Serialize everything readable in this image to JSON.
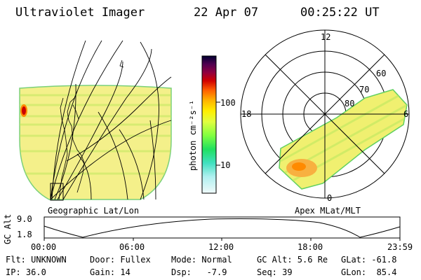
{
  "header": {
    "title": "Ultraviolet Imager",
    "date": "22 Apr 07",
    "time": "00:25:22 UT"
  },
  "geo_map": {
    "label": "Geographic Lat/Lon"
  },
  "colorbar": {
    "label": "photon cm⁻²s⁻¹",
    "tick_100": "100",
    "tick_10": "10",
    "colors": [
      "#000033",
      "#2a003f",
      "#5a0050",
      "#8a0040",
      "#c00000",
      "#e85000",
      "#ff9a00",
      "#ffd000",
      "#fff000",
      "#e0ff40",
      "#a0ff40",
      "#40ff60",
      "#00e0a0",
      "#40e0d0",
      "#a0f0f0",
      "#e0f8f8"
    ]
  },
  "polar": {
    "label": "Apex MLat/MLT",
    "mlt_12": "12",
    "mlt_18": "18",
    "mlt_6": "6",
    "mlt_0": "0",
    "lat_60": "60",
    "lat_70": "70",
    "lat_80": "80"
  },
  "altitude_plot": {
    "axis_label": "GC Alt",
    "y_max": "9.0",
    "y_min": "1.8",
    "x_ticks": [
      "00:00",
      "06:00",
      "12:00",
      "18:00",
      "23:59"
    ]
  },
  "info": {
    "flt": "Flt: UNKNOWN",
    "ip": "IP: 36.0",
    "door": "Door: Fullex",
    "gain": "Gain: 14",
    "mode": "Mode: Normal",
    "dsp": "Dsp:   -7.9",
    "gcalt": "GC Alt: 5.6 Re",
    "seq": "Seq: 39",
    "glat": "GLat: -61.8",
    "glon": "GLon:  85.4"
  }
}
